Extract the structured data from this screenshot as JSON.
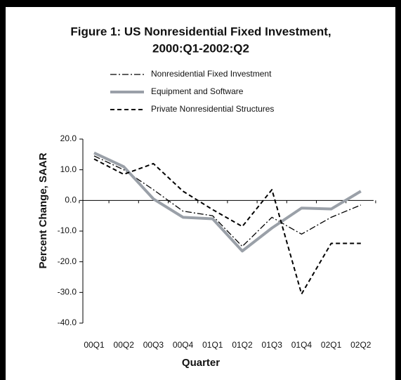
{
  "chart_data": {
    "type": "line",
    "title": [
      "Figure 1:  US Nonresidential Fixed Investment,",
      "2000:Q1-2002:Q2"
    ],
    "x_label": "Quarter",
    "y_label": "Percent Change, SAAR",
    "categories": [
      "00Q1",
      "00Q2",
      "00Q3",
      "00Q4",
      "01Q1",
      "01Q2",
      "01Q3",
      "01Q4",
      "02Q1",
      "02Q2"
    ],
    "series": [
      {
        "name": "Nonresidential Fixed Investment",
        "color": "#000000",
        "style": "dashdot",
        "values": [
          14.5,
          10,
          3.5,
          -3.5,
          -5,
          -15,
          -5.5,
          -11,
          -5.5,
          -1.5
        ]
      },
      {
        "name": "Equipment and Software",
        "color": "#9aa0a8",
        "style": "solid",
        "values": [
          15.5,
          11,
          0.5,
          -5.5,
          -6,
          -16.5,
          -9,
          -2.5,
          -2.8,
          3
        ]
      },
      {
        "name": "Private Nonresidential Structures",
        "color": "#000000",
        "style": "dashed",
        "values": [
          13.5,
          8.5,
          12,
          3,
          -3,
          -8.5,
          3.5,
          -30.5,
          -14,
          -14
        ]
      }
    ],
    "ylim": [
      -40,
      20
    ],
    "yticks": [
      {
        "value": 20,
        "label": "20.0"
      },
      {
        "value": 10,
        "label": "10.0"
      },
      {
        "value": 0,
        "label": "0.0"
      },
      {
        "value": -10,
        "label": "-10.0"
      },
      {
        "value": -20,
        "label": "-20.0"
      },
      {
        "value": -30,
        "label": "-30.0"
      },
      {
        "value": -40,
        "label": "-40.0"
      }
    ],
    "grid": false
  }
}
